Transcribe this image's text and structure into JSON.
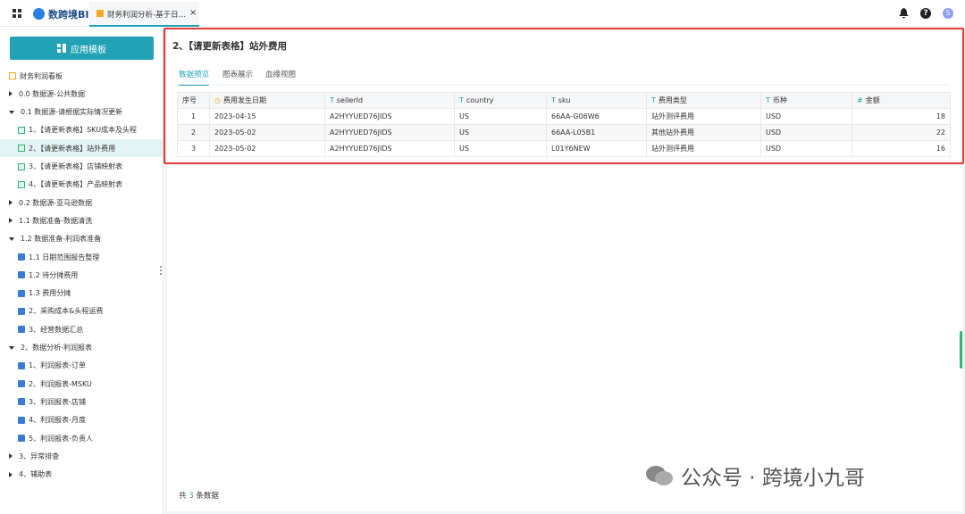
{
  "topbar": {
    "logo": "数跨境BI",
    "tab": "财务利润分析-基于日...",
    "avatar": "S"
  },
  "sidebar": {
    "button": "应用模板",
    "items": [
      "财务利润看板",
      "0.0 数据源-公共数据",
      "0.1 数据源-请根据实际情况更新",
      "1、【请更新表格】SKU成本及头程",
      "2、【请更新表格】站外费用",
      "3、【请更新表格】店铺映射表",
      "4、【请更新表格】产品映射表",
      "0.2 数据源-亚马逊数据",
      "1.1 数据准备-数据清洗",
      "1.2 数据准备-利润表准备",
      "1.1 日期范围报告整理",
      "1.2 待分摊费用",
      "1.3 费用分摊",
      "2、采购成本&头程运费",
      "3、经营数据汇总",
      "2、数据分析-利润报表",
      "1、利润报表-订单",
      "2、利润报表-MSKU",
      "3、利润报表-店铺",
      "4、利润报表-月度",
      "5、利润报表-负责人",
      "3、异常排查",
      "4、辅助表"
    ]
  },
  "main": {
    "title": "2、【请更新表格】站外费用",
    "tabs": [
      "数据预览",
      "图表展示",
      "血缘视图"
    ],
    "table": {
      "headers": [
        "序号",
        "费用发生日期",
        "sellerId",
        "country",
        "sku",
        "费用类型",
        "币种",
        "金额"
      ],
      "rows": [
        [
          "1",
          "2023-04-15",
          "A2HYYUED76JIDS",
          "US",
          "66AA-G06W6",
          "站外测评费用",
          "USD",
          "18"
        ],
        [
          "2",
          "2023-05-02",
          "A2HYYUED76JIDS",
          "US",
          "66AA-L05B1",
          "其他站外费用",
          "USD",
          "22"
        ],
        [
          "3",
          "2023-05-02",
          "A2HYYUED76JIDS",
          "US",
          "L01Y6NEW",
          "站外测评费用",
          "USD",
          "16"
        ]
      ]
    },
    "footer": [
      "共",
      "3",
      "条数据"
    ]
  },
  "watermark": "公众号 · 跨境小九哥"
}
